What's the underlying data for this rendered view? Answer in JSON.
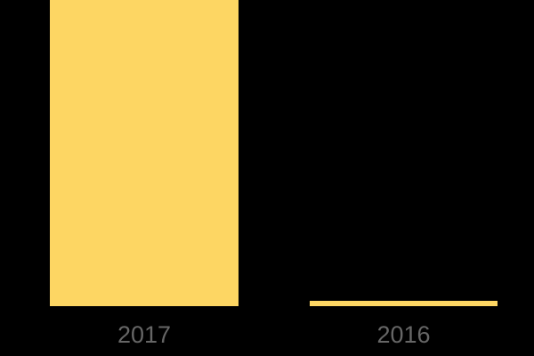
{
  "chart_data": {
    "type": "bar",
    "title": "",
    "xlabel": "",
    "ylabel": "",
    "categories": [
      "2017",
      "2016"
    ],
    "values": [
      344,
      6
    ],
    "values_note": "no numeric axis shown; values are bar heights in pixels (2017 bar reaches top edge of image, ratio ~57:1)",
    "ylim": [
      0,
      344
    ],
    "grid": false,
    "legend": false,
    "colors": {
      "bar": "#FDD663",
      "background": "#000000",
      "label": "#666666"
    }
  }
}
